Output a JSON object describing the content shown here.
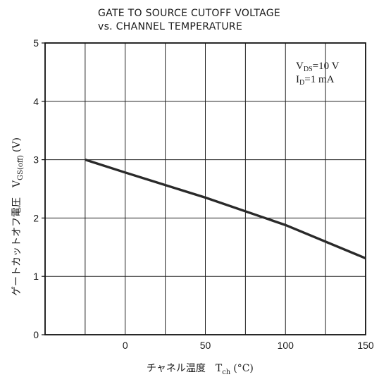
{
  "chart_data": {
    "type": "line",
    "title": "GATE TO SOURCE CUTOFF VOLTAGE",
    "subtitle": "vs. CHANNEL TEMPERATURE",
    "xlabel": "チャネル温度　T",
    "xlabel_sub": "ch",
    "xlabel_unit": "(°C)",
    "ylabel": "ゲートカットオフ電圧　V",
    "ylabel_sub": "GS(off)",
    "ylabel_unit": "(V)",
    "xlim": [
      -50,
      150
    ],
    "ylim": [
      0,
      5
    ],
    "x_ticks": [
      0,
      50,
      100,
      150
    ],
    "x_tick_labels": [
      "0",
      "50",
      "100",
      "150"
    ],
    "y_ticks": [
      0,
      1,
      2,
      3,
      4,
      5
    ],
    "y_tick_labels": [
      "0",
      "1",
      "2",
      "3",
      "4",
      "5"
    ],
    "grid": true,
    "annotations": [
      {
        "main": "V",
        "sub": "DS",
        "rest": "=10  V"
      },
      {
        "main": "I",
        "sub": "D",
        "rest": "=1  mA"
      }
    ],
    "series": [
      {
        "x": [
          -25,
          0,
          50,
          100,
          150
        ],
        "y": [
          3.0,
          2.78,
          2.35,
          1.88,
          1.31
        ]
      }
    ]
  },
  "colors": {
    "line": "#2a2a2a",
    "grid": "#222222",
    "background": "#ffffff"
  }
}
